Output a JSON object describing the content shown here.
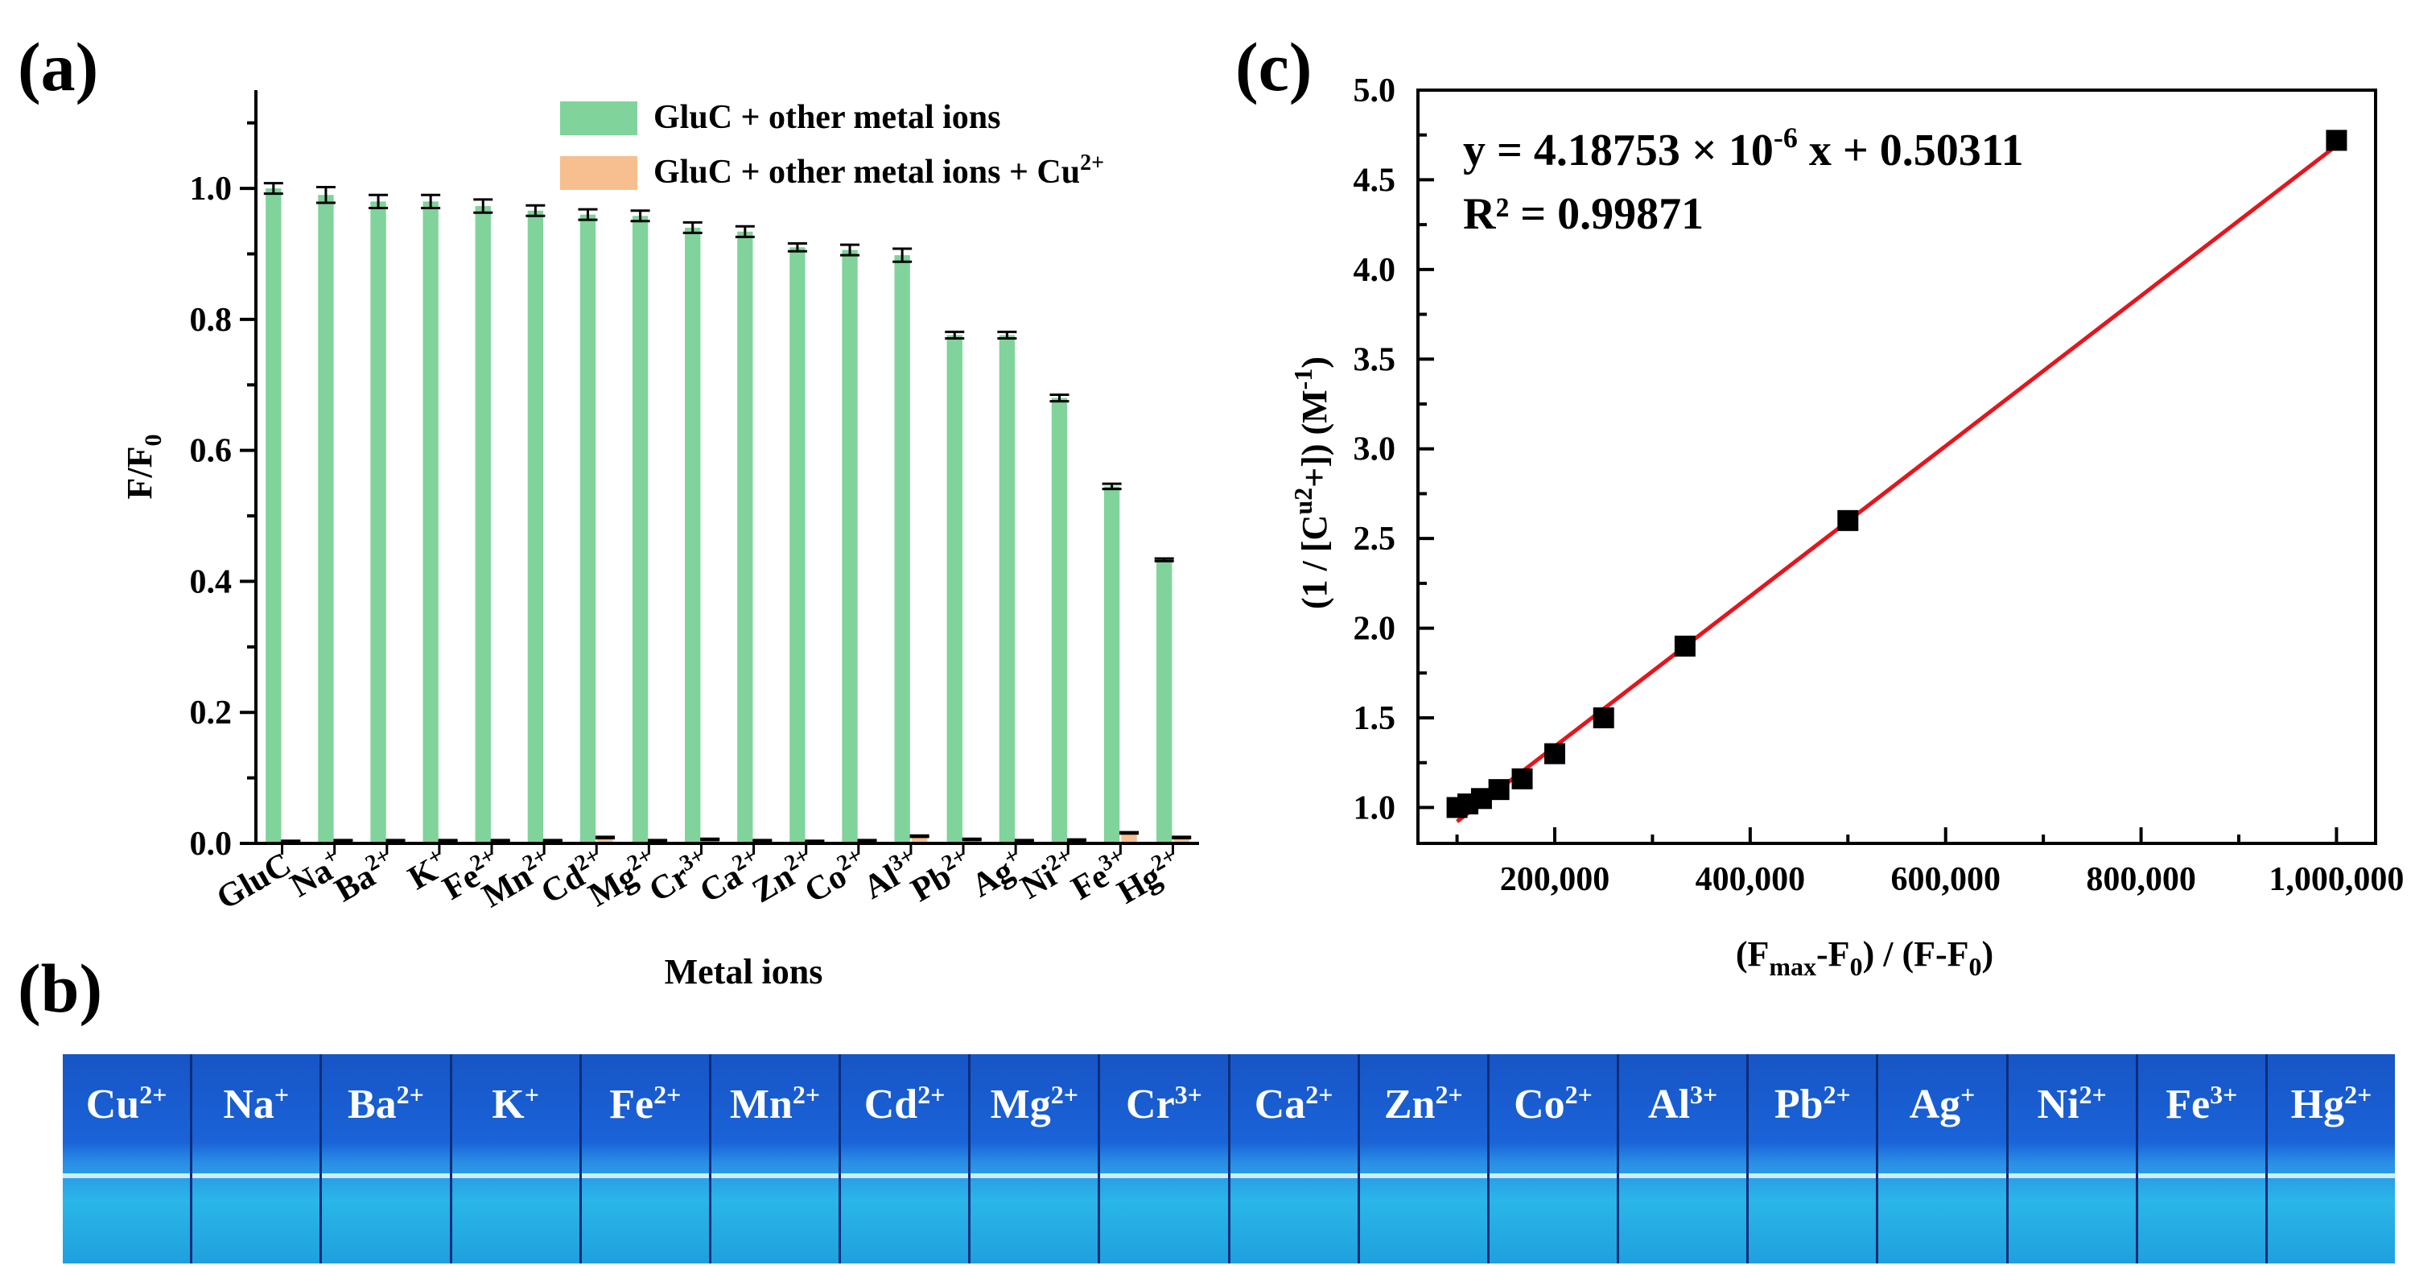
{
  "panels": {
    "a": "(a)",
    "b": "(b)",
    "c": "(c)"
  },
  "colors": {
    "green": "#80d39b",
    "orange": "#f7bf8f",
    "fit_line": "#e8141b"
  },
  "chart_data": [
    {
      "type": "bar",
      "panel": "(a)",
      "xlabel": "Metal ions",
      "ylabel": "F/F",
      "ylabel_sub": "0",
      "ylim": [
        0,
        1.15
      ],
      "yticks": [
        "0.0",
        "0.2",
        "0.4",
        "0.6",
        "0.8",
        "1.0"
      ],
      "categories": [
        "GluC",
        "Na",
        "Ba",
        "K",
        "Fe",
        "Mn",
        "Cd",
        "Mg",
        "Cr",
        "Ca",
        "Zn",
        "Co",
        "Al",
        "Pb",
        "Ag",
        "Ni",
        "Fe",
        "Hg"
      ],
      "charges": [
        "",
        "+",
        "2+",
        "+",
        "2+",
        "2+",
        "2+",
        "2+",
        "3+",
        "2+",
        "2+",
        "2+",
        "3+",
        "2+",
        "+",
        "2+",
        "3+",
        "2+"
      ],
      "series": [
        {
          "name": "GluC + other metal ions",
          "name_sup": "",
          "values": [
            1.0,
            0.99,
            0.98,
            0.98,
            0.973,
            0.966,
            0.96,
            0.958,
            0.94,
            0.934,
            0.91,
            0.906,
            0.898,
            0.776,
            0.776,
            0.68,
            0.545,
            0.433
          ],
          "errors": [
            0.008,
            0.012,
            0.01,
            0.01,
            0.01,
            0.008,
            0.008,
            0.008,
            0.008,
            0.008,
            0.006,
            0.008,
            0.01,
            0.005,
            0.005,
            0.005,
            0.004,
            0.002
          ]
        },
        {
          "name": "GluC + other metal ions + Cu",
          "name_sup": "2+",
          "values": [
            0.003,
            0.004,
            0.004,
            0.004,
            0.004,
            0.004,
            0.009,
            0.004,
            0.006,
            0.004,
            0.003,
            0.004,
            0.011,
            0.006,
            0.004,
            0.005,
            0.016,
            0.009
          ],
          "errors": [
            0.001,
            0.001,
            0.001,
            0.001,
            0.001,
            0.001,
            0.001,
            0.001,
            0.001,
            0.001,
            0.001,
            0.001,
            0.001,
            0.001,
            0.001,
            0.001,
            0.001,
            0.001
          ]
        }
      ],
      "legend": "top-right"
    },
    {
      "type": "scatter",
      "panel": "(c)",
      "xlabel": "(Fmax-F0) / (F-F0)",
      "ylabel": "(1 / [Cu2+]) (M-1)",
      "xlim": [
        60000,
        1040000
      ],
      "ylim": [
        0.8,
        5.0
      ],
      "xticks": [
        "200,000",
        "400,000",
        "600,000",
        "800,000",
        "1,000,000"
      ],
      "xtick_values": [
        200000,
        400000,
        600000,
        800000,
        1000000
      ],
      "yticks": [
        "1.0",
        "1.5",
        "2.0",
        "2.5",
        "3.0",
        "3.5",
        "4.0",
        "4.5",
        "5.0"
      ],
      "ytick_values": [
        1.0,
        1.5,
        2.0,
        2.5,
        3.0,
        3.5,
        4.0,
        4.5,
        5.0
      ],
      "x": [
        100000,
        111111,
        125000,
        142857,
        166667,
        200000,
        250000,
        333333,
        500000,
        1000000
      ],
      "y": [
        1.0,
        1.02,
        1.05,
        1.1,
        1.16,
        1.3,
        1.5,
        1.9,
        2.6,
        4.72
      ],
      "fit": {
        "slope_per_1e6": 4.18753,
        "intercept": 0.50311,
        "x_range": [
          100000,
          1000000
        ]
      },
      "equation": {
        "prefix": "y = 4.18753 × 10",
        "exp": "-6",
        "suffix": " x + 0.50311",
        "r2_label": "R² = 0.99871"
      }
    }
  ],
  "vials": [
    {
      "ion": "Cu",
      "charge": "2+"
    },
    {
      "ion": "Na",
      "charge": "+"
    },
    {
      "ion": "Ba",
      "charge": "2+"
    },
    {
      "ion": "K",
      "charge": "+"
    },
    {
      "ion": "Fe",
      "charge": "2+"
    },
    {
      "ion": "Mn",
      "charge": "2+"
    },
    {
      "ion": "Cd",
      "charge": "2+"
    },
    {
      "ion": "Mg",
      "charge": "2+"
    },
    {
      "ion": "Cr",
      "charge": "3+"
    },
    {
      "ion": "Ca",
      "charge": "2+"
    },
    {
      "ion": "Zn",
      "charge": "2+"
    },
    {
      "ion": "Co",
      "charge": "2+"
    },
    {
      "ion": "Al",
      "charge": "3+"
    },
    {
      "ion": "Pb",
      "charge": "2+"
    },
    {
      "ion": "Ag",
      "charge": "+"
    },
    {
      "ion": "Ni",
      "charge": "2+"
    },
    {
      "ion": "Fe",
      "charge": "3+"
    },
    {
      "ion": "Hg",
      "charge": "2+"
    }
  ]
}
